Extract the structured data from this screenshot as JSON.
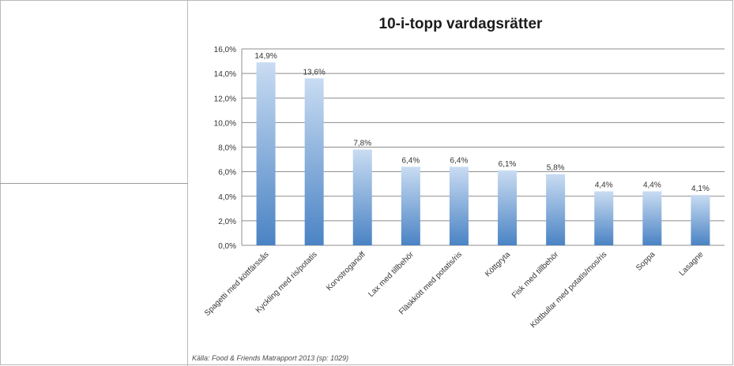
{
  "chart_data": {
    "type": "bar",
    "title": "10-i-topp vardagsrätter",
    "categories": [
      "Spagetti med köttfärssås",
      "Kyckling med ris/potatis",
      "Korvstroganoff",
      "Lax med tillbehör",
      "Fläskkött med potatis/ris",
      "Köttgryta",
      "Fisk med tillbehör",
      "Köttbullar med potatis/mos/ris",
      "Soppa",
      "Lasagne"
    ],
    "values": [
      14.9,
      13.6,
      7.8,
      6.4,
      6.4,
      6.1,
      5.8,
      4.4,
      4.4,
      4.1
    ],
    "value_labels": [
      "14,9%",
      "13,6%",
      "7,8%",
      "6,4%",
      "6,4%",
      "6,1%",
      "5,8%",
      "4,4%",
      "4,4%",
      "4,1%"
    ],
    "yticks": [
      0,
      2,
      4,
      6,
      8,
      10,
      12,
      14,
      16
    ],
    "ytick_labels": [
      "0,0%",
      "2,0%",
      "4,0%",
      "6,0%",
      "8,0%",
      "10,0%",
      "12,0%",
      "14,0%",
      "16,0%"
    ],
    "ylim": [
      0,
      16
    ],
    "grid": true,
    "legend": "none",
    "colors": {
      "bar_top": "#c9dcf2",
      "bar_bottom": "#4a83c4",
      "grid": "#8c8c8c"
    }
  },
  "source_note": "Källa: Food & Friends Matrapport 2013 (sp: 1029)"
}
